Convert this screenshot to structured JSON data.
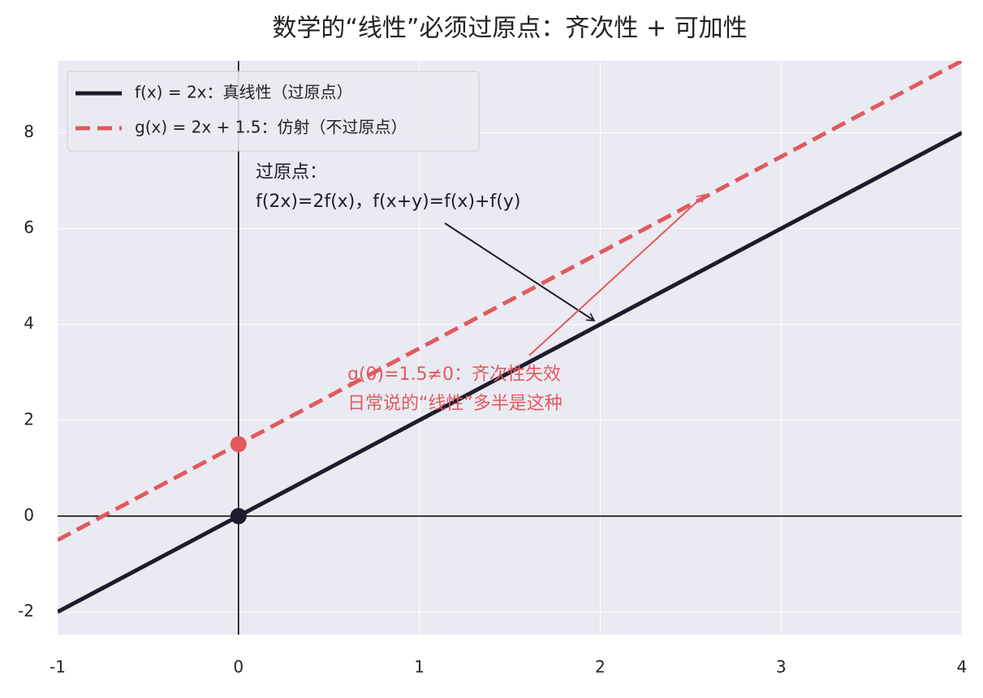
{
  "chart_data": {
    "type": "line",
    "title": "数学的“线性”必须过原点：齐次性 + 可加性",
    "series": [
      {
        "name": "f(x) = 2x：真线性（过原点）",
        "color": "#1e1b2e",
        "dash": false,
        "x": [
          -1,
          4
        ],
        "values": [
          -2,
          8
        ]
      },
      {
        "name": "g(x) = 2x + 1.5：仿射（不过原点）",
        "color": "#e05a5e",
        "dash": true,
        "x": [
          -1,
          4
        ],
        "values": [
          -0.5,
          9.5
        ]
      }
    ],
    "points": [
      {
        "x": 0,
        "y": 0,
        "color": "#1e1b2e"
      },
      {
        "x": 0,
        "y": 1.5,
        "color": "#e05a5e"
      }
    ],
    "annotations": [
      {
        "lines": [
          "过原点：",
          "f(2x)=2f(x)，f(x+y)=f(x)+f(y)"
        ],
        "color": "#1e1b2e"
      },
      {
        "lines": [
          "g(0)=1.5≠0：齐次性失效",
          "日常说的“线性”多半是这种"
        ],
        "color": "#e05a5e"
      }
    ],
    "xlim": [
      -1,
      4
    ],
    "ylim": [
      -2.475,
      9.5
    ],
    "xticks": [
      -1,
      0,
      1,
      2,
      3,
      4
    ],
    "yticks": [
      -2,
      0,
      2,
      4,
      6,
      8
    ],
    "grid": true,
    "legend": "upper left"
  }
}
